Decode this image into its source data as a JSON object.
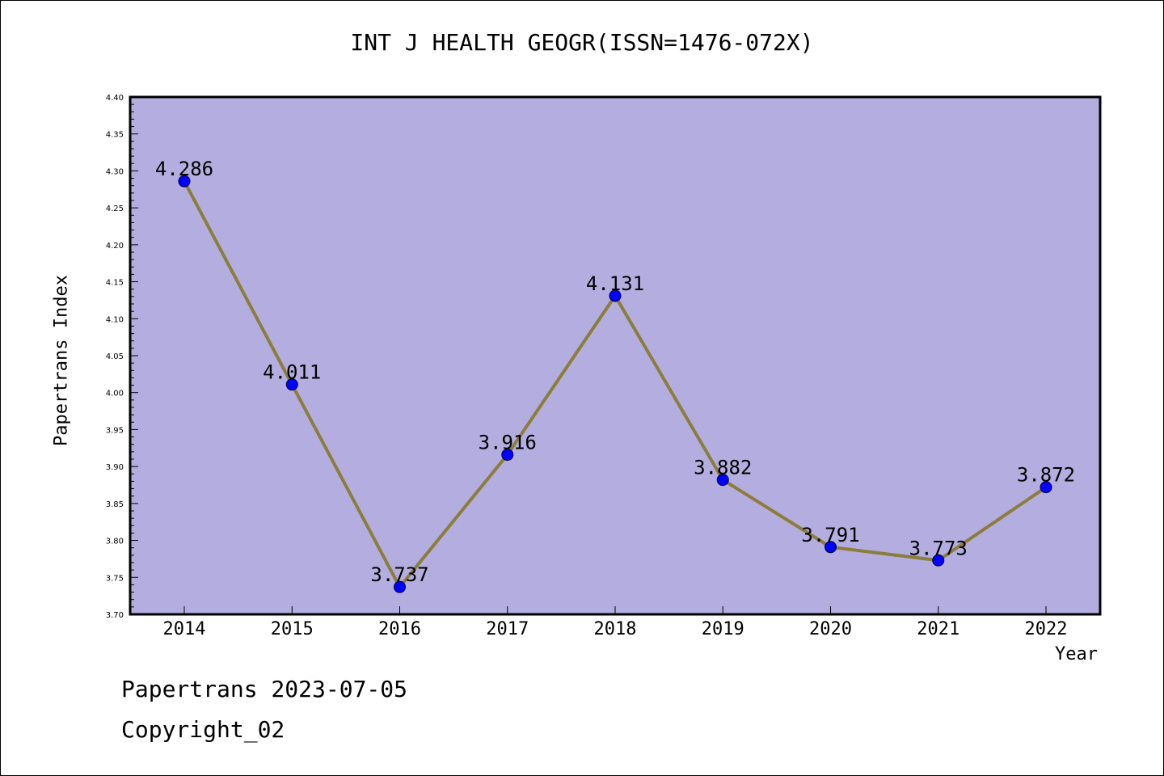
{
  "footer": {
    "date_line": "Papertrans 2023-07-05",
    "copyright_line": "Copyright_02"
  },
  "colors": {
    "plot_background": "#b4aee0",
    "line": "#8b7d3a",
    "marker": "#0000ff",
    "axis": "#000000"
  },
  "chart_data": {
    "type": "line",
    "title": "INT J HEALTH GEOGR(ISSN=1476-072X)",
    "xlabel": "Year",
    "ylabel": "Papertrans Index",
    "categories": [
      "2014",
      "2015",
      "2016",
      "2017",
      "2018",
      "2019",
      "2020",
      "2021",
      "2022"
    ],
    "series": [
      {
        "values": [
          4.286,
          4.011,
          3.737,
          3.916,
          4.131,
          3.882,
          3.791,
          3.773,
          3.872
        ],
        "labels": [
          "4.286",
          "4.011",
          "3.737",
          "3.916",
          "4.131",
          "3.882",
          "3.791",
          "3.773",
          "3.872"
        ]
      }
    ],
    "ylim": [
      3.7,
      4.4
    ],
    "y_ticks": [
      "3.70",
      "3.75",
      "3.80",
      "3.85",
      "3.90",
      "3.95",
      "4.00",
      "4.05",
      "4.10",
      "4.15",
      "4.20",
      "4.25",
      "4.30",
      "4.35",
      "4.40"
    ],
    "grid": false,
    "legend": "none"
  }
}
